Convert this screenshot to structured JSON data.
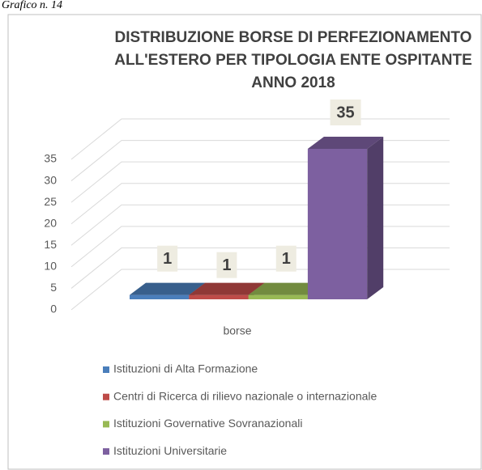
{
  "caption": "Grafico n. 14",
  "chart_data": {
    "type": "bar3d",
    "title": [
      "DISTRIBUZIONE BORSE DI PERFEZIONAMENTO",
      "ALL'ESTERO PER TIPOLOGIA ENTE OSPITANTE",
      "ANNO 2018"
    ],
    "categories": [
      "borse"
    ],
    "series": [
      {
        "name": "Istituzioni di Alta Formazione",
        "color": "#4a7ebb",
        "values": [
          1
        ]
      },
      {
        "name": "Centri di Ricerca di rilievo nazionale o internazionale",
        "color": "#be4b48",
        "values": [
          1
        ]
      },
      {
        "name": "Istituzioni Governative Sovranazionali",
        "color": "#98b954",
        "values": [
          1
        ]
      },
      {
        "name": "Istituzioni Universitarie",
        "color": "#7d60a0",
        "values": [
          35
        ]
      }
    ],
    "ylim": [
      0,
      35
    ],
    "yticks": [
      0,
      5,
      10,
      15,
      20,
      25,
      30,
      35
    ],
    "grid": true,
    "legend": "bottom"
  }
}
